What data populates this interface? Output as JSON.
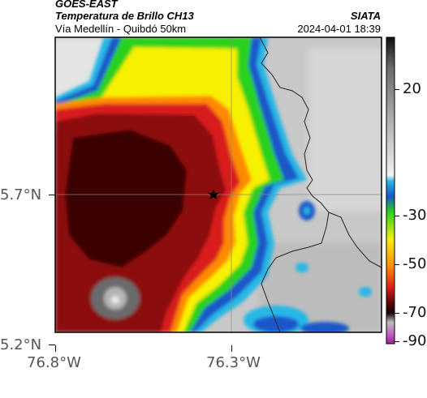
{
  "header": {
    "line1": "GOES-EAST",
    "line2": "Temperatura de Brillo CH13",
    "line3": "Vía Medellín - Quibdó 50km",
    "brand": "SIATA",
    "datetime": "2024-04-01 18:39"
  },
  "axes": {
    "y_ticks": [
      "5.7°N",
      "5.2°N"
    ],
    "x_ticks": [
      "76.8°W",
      "76.3°W"
    ]
  },
  "colorbar": {
    "ticks": [
      "20",
      "-30",
      "-50",
      "-70",
      "-90"
    ]
  },
  "marker": {
    "symbol": "star"
  },
  "colors": {
    "cold_core": "#3a0000",
    "deep_red": "#8c0f0f",
    "red": "#d81b1b",
    "orange": "#ff8a00",
    "yellow": "#f7f000",
    "green": "#2bd11f",
    "blue": "#1a57c9",
    "cyan": "#28b7e6",
    "warm_gray": "#c8c8c8",
    "border_line": "#222222"
  }
}
